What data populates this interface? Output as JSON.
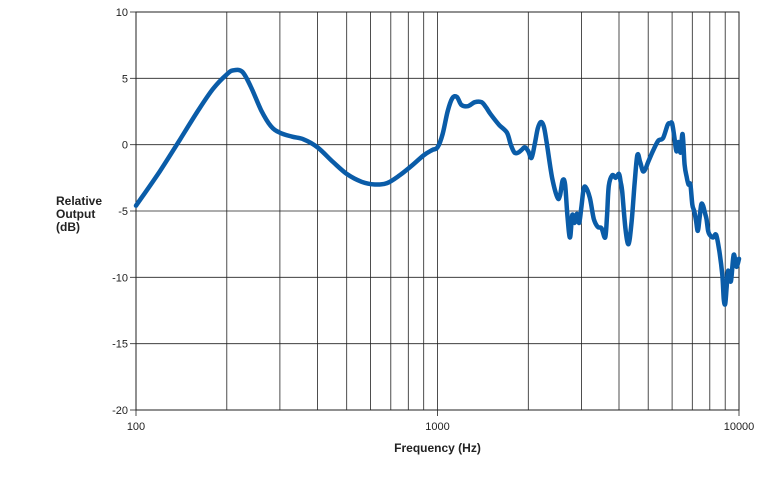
{
  "chart_data": {
    "type": "line",
    "xscale": "log",
    "xlim": [
      100,
      10000
    ],
    "ylim": [
      -20,
      10
    ],
    "xlabel": "Frequency (Hz)",
    "ylabel_lines": [
      "Relative",
      "Output",
      "(dB)"
    ],
    "x_tick_labels": [
      "100",
      "1000",
      "10000"
    ],
    "y_ticks": [
      10,
      5,
      0,
      -5,
      -10,
      -15,
      -20
    ],
    "grid": true,
    "line_color": "#0a5ca8",
    "series": [
      {
        "x": [
          100,
          120,
          140,
          160,
          180,
          200,
          210,
          225,
          240,
          260,
          280,
          300,
          330,
          360,
          400,
          450,
          500,
          560,
          620,
          680,
          750,
          820,
          900,
          960,
          1000,
          1040,
          1080,
          1120,
          1160,
          1200,
          1260,
          1330,
          1400,
          1450,
          1500,
          1600,
          1700,
          1750,
          1800,
          1850,
          1900,
          1950,
          2000,
          2050,
          2100,
          2150,
          2200,
          2250,
          2300,
          2400,
          2500,
          2550,
          2600,
          2650,
          2700,
          2750,
          2800,
          2850,
          2900,
          2950,
          3000,
          3050,
          3100,
          3200,
          3300,
          3400,
          3500,
          3600,
          3650,
          3700,
          3800,
          3900,
          4000,
          4050,
          4100,
          4200,
          4300,
          4400,
          4500,
          4600,
          4700,
          4800,
          4900,
          5000,
          5200,
          5400,
          5600,
          5800,
          5900,
          6000,
          6100,
          6200,
          6300,
          6400,
          6500,
          6600,
          6700,
          6800,
          6900,
          7000,
          7100,
          7200,
          7300,
          7400,
          7500,
          7600,
          7700,
          7800,
          7900,
          8000,
          8200,
          8400,
          8600,
          8800,
          8900,
          9000,
          9100,
          9200,
          9400,
          9600,
          9800,
          10000
        ],
        "y": [
          -4.6,
          -2.0,
          0.4,
          2.5,
          4.2,
          5.3,
          5.6,
          5.5,
          4.4,
          2.6,
          1.4,
          0.9,
          0.6,
          0.4,
          -0.2,
          -1.3,
          -2.2,
          -2.8,
          -3.0,
          -2.9,
          -2.3,
          -1.6,
          -0.8,
          -0.4,
          -0.2,
          0.8,
          2.5,
          3.5,
          3.6,
          3.0,
          2.9,
          3.2,
          3.2,
          2.8,
          2.3,
          1.5,
          0.9,
          0.0,
          -0.6,
          -0.6,
          -0.4,
          -0.2,
          -0.5,
          -1.0,
          0.0,
          1.2,
          1.7,
          1.4,
          0.2,
          -2.5,
          -4.0,
          -3.8,
          -2.7,
          -3.0,
          -5.5,
          -7.0,
          -5.3,
          -5.9,
          -5.2,
          -5.9,
          -4.7,
          -3.4,
          -3.2,
          -4.0,
          -5.6,
          -6.2,
          -6.3,
          -7.0,
          -5.4,
          -3.1,
          -2.3,
          -2.5,
          -2.2,
          -2.8,
          -3.6,
          -6.3,
          -7.5,
          -5.9,
          -3.1,
          -0.8,
          -1.3,
          -2.0,
          -1.8,
          -1.3,
          -0.4,
          0.3,
          0.5,
          1.5,
          1.6,
          1.6,
          0.6,
          -0.5,
          0.2,
          -0.6,
          0.8,
          -1.5,
          -2.4,
          -3.0,
          -3.0,
          -4.5,
          -5.0,
          -5.7,
          -6.5,
          -5.5,
          -4.5,
          -4.6,
          -5.1,
          -5.6,
          -6.5,
          -6.8,
          -7.0,
          -6.8,
          -8.0,
          -9.8,
          -11.6,
          -12.0,
          -10.7,
          -9.5,
          -10.3,
          -8.3,
          -9.2,
          -8.6
        ]
      }
    ]
  }
}
